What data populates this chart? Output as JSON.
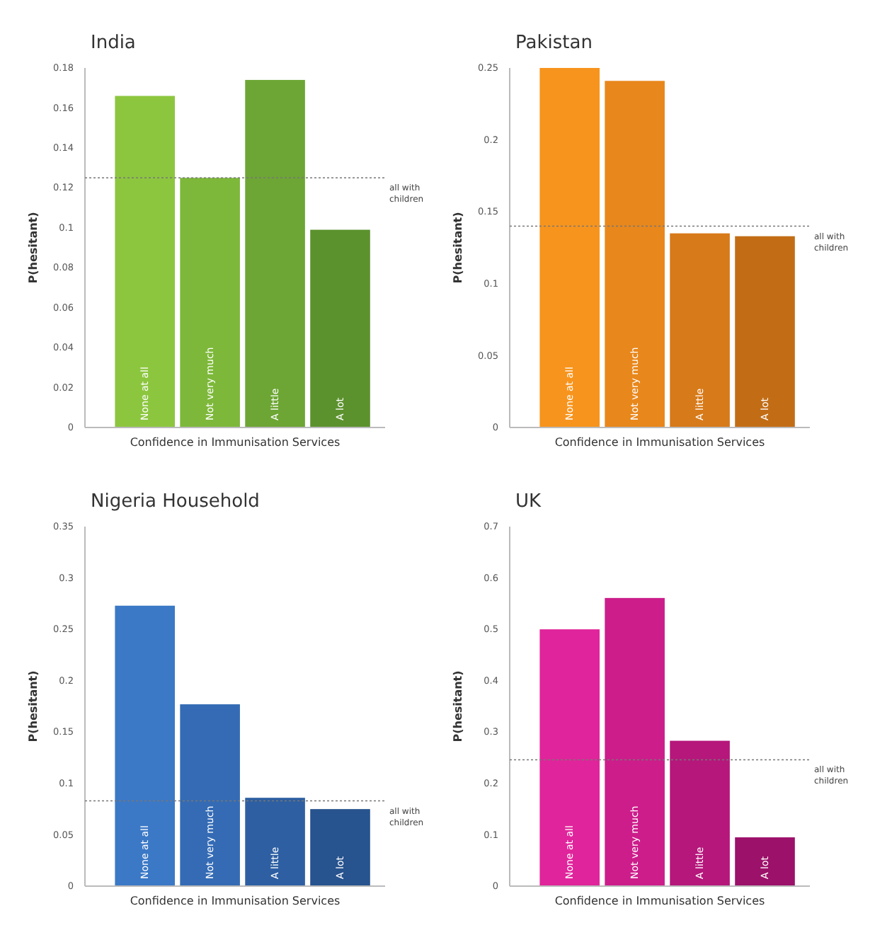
{
  "chart_data": [
    {
      "type": "bar",
      "title": "India",
      "xlabel": "Confidence in Immunisation Services",
      "ylabel": "P(hesitant)",
      "categories": [
        "None at all",
        "Not very much",
        "A little",
        "A lot"
      ],
      "values": [
        0.166,
        0.125,
        0.174,
        0.099
      ],
      "colors": [
        "#8cc63f",
        "#7db83a",
        "#6da634",
        "#5c922e"
      ],
      "ylim": [
        0,
        0.18
      ],
      "yticks": [
        0,
        0.02,
        0.04,
        0.06,
        0.08,
        0.1,
        0.12,
        0.14,
        0.16,
        0.18
      ],
      "ref_lines": [
        {
          "axis": "y",
          "value": 0.125,
          "label": "all with children",
          "line_style": "dotted"
        }
      ]
    },
    {
      "type": "bar",
      "title": "Pakistan",
      "xlabel": "Confidence in Immunisation Services",
      "ylabel": "P(hesitant)",
      "categories": [
        "None at all",
        "Not very much",
        "A little",
        "A lot"
      ],
      "values": [
        0.25,
        0.241,
        0.135,
        0.133
      ],
      "colors": [
        "#f7941d",
        "#e8871b",
        "#d77a19",
        "#c26d16"
      ],
      "ylim": [
        0,
        0.25
      ],
      "yticks": [
        0,
        0.05,
        0.1,
        0.15,
        0.2,
        0.25
      ],
      "ref_lines": [
        {
          "axis": "y",
          "value": 0.14,
          "label": "all with children",
          "line_style": "dotted"
        }
      ]
    },
    {
      "type": "bar",
      "title": "Nigeria Household",
      "xlabel": "Confidence in Immunisation Services",
      "ylabel": "P(hesitant)",
      "categories": [
        "None at all",
        "Not very much",
        "A little",
        "A lot"
      ],
      "values": [
        0.273,
        0.177,
        0.086,
        0.075
      ],
      "colors": [
        "#3b78c6",
        "#346bb4",
        "#2d5fa2",
        "#27538e"
      ],
      "ylim": [
        0,
        0.35
      ],
      "yticks": [
        0,
        0.05,
        0.1,
        0.15,
        0.2,
        0.25,
        0.3,
        0.35
      ],
      "ref_lines": [
        {
          "axis": "y",
          "value": 0.083,
          "label": "all with children",
          "line_style": "dotted"
        }
      ]
    },
    {
      "type": "bar",
      "title": "UK",
      "xlabel": "Confidence in Immunisation Services",
      "ylabel": "P(hesitant)",
      "categories": [
        "None at all",
        "Not very much",
        "A little",
        "A lot"
      ],
      "values": [
        0.5,
        0.561,
        0.283,
        0.095
      ],
      "colors": [
        "#e0249b",
        "#cc1d8b",
        "#b5177b",
        "#9c116a"
      ],
      "ylim": [
        0,
        0.7
      ],
      "yticks": [
        0,
        0.1,
        0.2,
        0.3,
        0.4,
        0.5,
        0.6,
        0.7
      ],
      "ref_lines": [
        {
          "axis": "y",
          "value": 0.246,
          "label": "all with children",
          "line_style": "dotted"
        }
      ]
    }
  ]
}
